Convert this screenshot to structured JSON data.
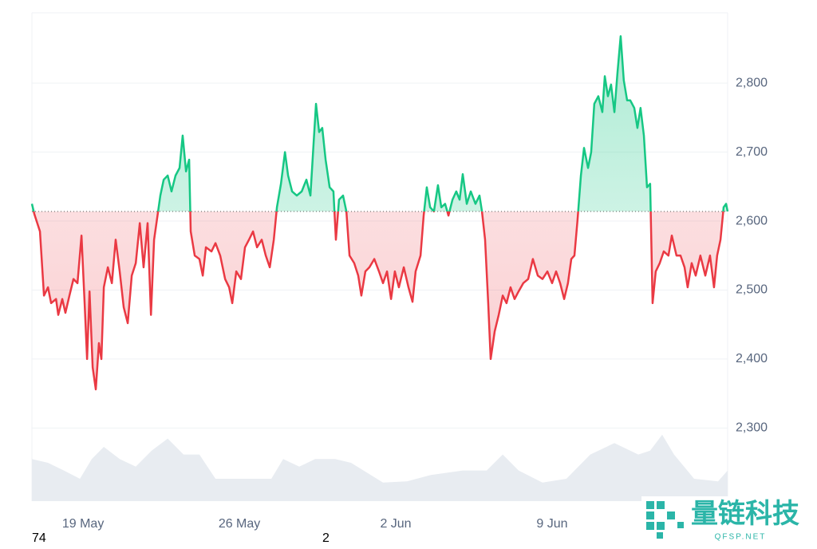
{
  "chart_data": {
    "type": "line",
    "x": [
      -2.29,
      -2.18,
      -1.93,
      -1.75,
      -1.57,
      -1.43,
      -1.21,
      -1.11,
      -0.93,
      -0.79,
      -0.61,
      -0.43,
      -0.25,
      -0.07,
      0.07,
      0.18,
      0.29,
      0.43,
      0.57,
      0.71,
      0.82,
      0.93,
      1.11,
      1.29,
      1.46,
      1.64,
      1.82,
      2.0,
      2.18,
      2.36,
      2.54,
      2.71,
      2.89,
      3.04,
      3.18,
      3.36,
      3.46,
      3.61,
      3.79,
      3.96,
      4.14,
      4.32,
      4.46,
      4.61,
      4.75,
      4.82,
      5.0,
      5.21,
      5.36,
      5.5,
      5.75,
      5.93,
      6.14,
      6.36,
      6.54,
      6.68,
      6.86,
      7.07,
      7.25,
      7.43,
      7.61,
      7.79,
      8.0,
      8.18,
      8.36,
      8.54,
      8.68,
      8.86,
      9.04,
      9.18,
      9.36,
      9.57,
      9.79,
      10.0,
      10.18,
      10.32,
      10.43,
      10.57,
      10.71,
      10.86,
      11.04,
      11.21,
      11.32,
      11.46,
      11.64,
      11.79,
      11.93,
      12.14,
      12.32,
      12.46,
      12.64,
      12.82,
      13.04,
      13.25,
      13.43,
      13.61,
      13.79,
      13.96,
      14.14,
      14.36,
      14.57,
      14.75,
      14.89,
      15.11,
      15.25,
      15.39,
      15.54,
      15.71,
      15.89,
      16.04,
      16.21,
      16.36,
      16.54,
      16.71,
      16.86,
      17.0,
      17.18,
      17.36,
      17.57,
      17.75,
      17.86,
      18.0,
      18.14,
      18.25,
      18.43,
      18.61,
      18.79,
      18.96,
      19.14,
      19.32,
      19.5,
      19.71,
      19.93,
      20.14,
      20.36,
      20.57,
      20.79,
      21.0,
      21.18,
      21.36,
      21.54,
      21.71,
      21.86,
      22.0,
      22.14,
      22.29,
      22.43,
      22.61,
      22.75,
      22.89,
      23.07,
      23.25,
      23.36,
      23.5,
      23.64,
      23.79,
      23.93,
      24.07,
      24.21,
      24.36,
      24.5,
      24.68,
      24.82,
      24.96,
      25.11,
      25.25,
      25.39,
      25.5,
      25.64,
      25.82,
      26.0,
      26.21,
      26.36,
      26.57,
      26.75,
      26.93,
      27.07,
      27.25,
      27.43,
      27.64,
      27.86,
      28.07,
      28.25,
      28.39,
      28.54,
      28.68,
      28.79,
      28.86
    ],
    "values": [
      2625,
      2610,
      2585,
      2492,
      2504,
      2481,
      2487,
      2464,
      2487,
      2467,
      2492,
      2516,
      2510,
      2579,
      2481,
      2400,
      2498,
      2388,
      2356,
      2423,
      2400,
      2504,
      2533,
      2510,
      2573,
      2527,
      2475,
      2452,
      2521,
      2539,
      2597,
      2533,
      2597,
      2464,
      2573,
      2614,
      2637,
      2660,
      2666,
      2643,
      2666,
      2677,
      2724,
      2672,
      2689,
      2585,
      2550,
      2545,
      2521,
      2562,
      2556,
      2568,
      2550,
      2516,
      2504,
      2481,
      2527,
      2516,
      2562,
      2573,
      2585,
      2562,
      2573,
      2550,
      2533,
      2573,
      2620,
      2654,
      2700,
      2666,
      2643,
      2637,
      2643,
      2660,
      2637,
      2712,
      2770,
      2729,
      2735,
      2689,
      2649,
      2643,
      2573,
      2631,
      2637,
      2614,
      2550,
      2539,
      2521,
      2492,
      2527,
      2533,
      2545,
      2527,
      2510,
      2527,
      2487,
      2527,
      2504,
      2533,
      2504,
      2483,
      2527,
      2550,
      2608,
      2649,
      2620,
      2614,
      2652,
      2620,
      2625,
      2608,
      2631,
      2643,
      2631,
      2668,
      2625,
      2643,
      2625,
      2637,
      2614,
      2573,
      2481,
      2400,
      2440,
      2464,
      2492,
      2481,
      2504,
      2487,
      2498,
      2510,
      2516,
      2545,
      2521,
      2516,
      2527,
      2510,
      2527,
      2510,
      2487,
      2510,
      2545,
      2550,
      2602,
      2666,
      2706,
      2677,
      2700,
      2770,
      2781,
      2758,
      2810,
      2781,
      2798,
      2758,
      2816,
      2868,
      2804,
      2775,
      2775,
      2764,
      2735,
      2764,
      2724,
      2649,
      2654,
      2481,
      2527,
      2539,
      2556,
      2550,
      2579,
      2550,
      2550,
      2533,
      2504,
      2539,
      2521,
      2550,
      2521,
      2550,
      2504,
      2550,
      2573,
      2620,
      2625,
      2614
    ],
    "baseline": 2614,
    "up_color": "#16c784",
    "down_color": "#ea3943",
    "volume": {
      "x": [
        -2.29,
        -1.57,
        -0.86,
        -0.14,
        0.39,
        0.93,
        1.64,
        2.36,
        3.07,
        3.79,
        4.5,
        5.21,
        5.93,
        6.64,
        7.71,
        8.43,
        8.96,
        9.68,
        10.39,
        11.29,
        12,
        13.43,
        14.5,
        15.57,
        17,
        18.07,
        18.79,
        19.5,
        20.57,
        21.64,
        22.71,
        23.79,
        24.86,
        25.39,
        25.93,
        26.46,
        27.36,
        28.43,
        28.86
      ],
      "values": [
        66,
        60,
        48,
        35,
        66,
        85,
        66,
        54,
        79,
        98,
        73,
        73,
        35,
        35,
        35,
        35,
        66,
        54,
        66,
        66,
        60,
        29,
        31,
        41,
        48,
        48,
        73,
        48,
        29,
        35,
        73,
        91,
        73,
        79,
        104,
        73,
        35,
        31,
        48
      ],
      "color": "#e8ecf1"
    },
    "volume_lim": [
      0,
      110
    ],
    "xlim": [
      -2.29,
      28.86
    ],
    "xticks": [
      {
        "value": 0,
        "label": "19 May"
      },
      {
        "value": 7,
        "label": "26 May"
      },
      {
        "value": 14,
        "label": "2 Jun"
      },
      {
        "value": 21,
        "label": "9 Jun"
      }
    ],
    "ylim": [
      2194,
      2902
    ],
    "yticks": [
      {
        "value": 2300,
        "label": "2,300"
      },
      {
        "value": 2400,
        "label": "2,400"
      },
      {
        "value": 2500,
        "label": "2,500"
      },
      {
        "value": 2600,
        "label": "2,600"
      },
      {
        "value": 2700,
        "label": "2,700"
      },
      {
        "value": 2800,
        "label": "2,800"
      }
    ],
    "grid": true,
    "footer_texts": [
      "74",
      "2"
    ],
    "watermark": {
      "title": "量链科技",
      "subtitle": "QFSP.NET"
    }
  }
}
